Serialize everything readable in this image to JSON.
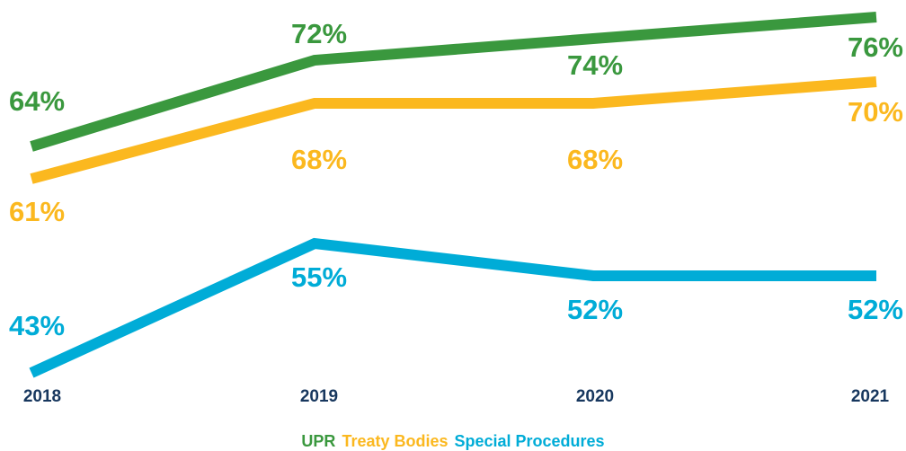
{
  "chart_data": {
    "type": "line",
    "categories": [
      "2018",
      "2019",
      "2020",
      "2021"
    ],
    "series": [
      {
        "name": "UPR",
        "color": "#3a983e",
        "values": [
          64,
          72,
          74,
          76
        ],
        "value_labels": [
          "64%",
          "72%",
          "74%",
          "76%"
        ]
      },
      {
        "name": "Treaty Bodies",
        "color": "#fbb81f",
        "values": [
          61,
          68,
          68,
          70
        ],
        "value_labels": [
          "61%",
          "68%",
          "68%",
          "70%"
        ]
      },
      {
        "name": "Special Procedures",
        "color": "#00acd7",
        "values": [
          43,
          55,
          52,
          52
        ],
        "value_labels": [
          "43%",
          "55%",
          "52%",
          "52%"
        ]
      }
    ],
    "ylim": [
      42,
      77
    ]
  }
}
